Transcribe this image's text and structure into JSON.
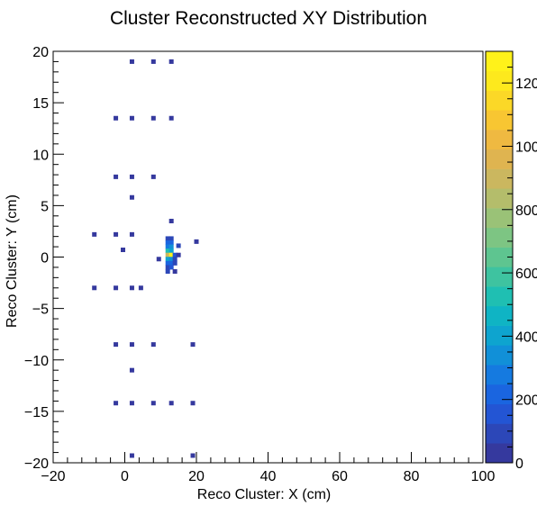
{
  "chart_data": {
    "type": "heatmap",
    "title": "Cluster Reconstructed XY Distribution",
    "xlabel": "Reco Cluster: X (cm)",
    "ylabel": "Reco Cluster: Y (cm)",
    "xlim": [
      -20,
      100
    ],
    "ylim": [
      -20,
      20
    ],
    "x_ticks": [
      "−20",
      "0",
      "20",
      "40",
      "60",
      "80",
      "100"
    ],
    "y_ticks": [
      "−20",
      "−15",
      "−10",
      "−5",
      "0",
      "5",
      "10",
      "15",
      "20"
    ],
    "z_range": [
      0,
      1300
    ],
    "z_ticks": [
      "0",
      "200",
      "400",
      "600",
      "800",
      "1000",
      "1200"
    ],
    "grid": false,
    "palette": [
      "#35399e",
      "#2c47b8",
      "#2355d4",
      "#1a65e0",
      "#157ae0",
      "#1190d8",
      "#0ea4cf",
      "#0fb4c4",
      "#1fbfb2",
      "#3ec3a0",
      "#5ec590",
      "#7dc583",
      "#9ac277",
      "#b4bd6b",
      "#cbb75f",
      "#dfb450",
      "#efb941",
      "#f8c632",
      "#fbd827",
      "#fde91d",
      "#fff21a"
    ],
    "cells": [
      {
        "x": 2,
        "y": 19,
        "v": 15
      },
      {
        "x": 8,
        "y": 19,
        "v": 15
      },
      {
        "x": 13,
        "y": 19,
        "v": 15
      },
      {
        "x": -2.5,
        "y": 13.5,
        "v": 15
      },
      {
        "x": 2,
        "y": 13.5,
        "v": 15
      },
      {
        "x": 8,
        "y": 13.5,
        "v": 15
      },
      {
        "x": 13,
        "y": 13.5,
        "v": 15
      },
      {
        "x": -2.5,
        "y": 7.8,
        "v": 15
      },
      {
        "x": 2,
        "y": 7.8,
        "v": 15
      },
      {
        "x": 8,
        "y": 7.8,
        "v": 15
      },
      {
        "x": 2,
        "y": 5.8,
        "v": 15
      },
      {
        "x": 13,
        "y": 3.5,
        "v": 15
      },
      {
        "x": -8.5,
        "y": 2.2,
        "v": 15
      },
      {
        "x": -2.5,
        "y": 2.2,
        "v": 15
      },
      {
        "x": 2,
        "y": 2.2,
        "v": 15
      },
      {
        "x": 20,
        "y": 1.5,
        "v": 15
      },
      {
        "x": -0.5,
        "y": 0.7,
        "v": 15
      },
      {
        "x": 9.5,
        "y": -0.2,
        "v": 15
      },
      {
        "x": 12,
        "y": 1.8,
        "v": 120
      },
      {
        "x": 13,
        "y": 1.8,
        "v": 120
      },
      {
        "x": 12,
        "y": 1.4,
        "v": 200
      },
      {
        "x": 13,
        "y": 1.4,
        "v": 200
      },
      {
        "x": 15,
        "y": 1.1,
        "v": 80
      },
      {
        "x": 12,
        "y": 1.0,
        "v": 300
      },
      {
        "x": 13,
        "y": 1.0,
        "v": 350
      },
      {
        "x": 12,
        "y": 0.6,
        "v": 500
      },
      {
        "x": 13,
        "y": 0.6,
        "v": 400
      },
      {
        "x": 12,
        "y": 0.2,
        "v": 900
      },
      {
        "x": 13,
        "y": 0.2,
        "v": 1300
      },
      {
        "x": 14,
        "y": 0.2,
        "v": 150
      },
      {
        "x": 15,
        "y": 0.2,
        "v": 60
      },
      {
        "x": 12,
        "y": -0.2,
        "v": 400
      },
      {
        "x": 13,
        "y": -0.2,
        "v": 350
      },
      {
        "x": 14,
        "y": -0.2,
        "v": 120
      },
      {
        "x": 12,
        "y": -0.6,
        "v": 200
      },
      {
        "x": 13,
        "y": -0.6,
        "v": 220
      },
      {
        "x": 14,
        "y": -0.6,
        "v": 80
      },
      {
        "x": 12,
        "y": -1.0,
        "v": 120
      },
      {
        "x": 13,
        "y": -1.0,
        "v": 150
      },
      {
        "x": 12,
        "y": -1.4,
        "v": 80
      },
      {
        "x": 14,
        "y": -1.4,
        "v": 60
      },
      {
        "x": -8.5,
        "y": -3,
        "v": 15
      },
      {
        "x": -2.5,
        "y": -3,
        "v": 15
      },
      {
        "x": 2,
        "y": -3,
        "v": 15
      },
      {
        "x": 4.5,
        "y": -3,
        "v": 15
      },
      {
        "x": -2.5,
        "y": -8.5,
        "v": 15
      },
      {
        "x": 2,
        "y": -8.5,
        "v": 15
      },
      {
        "x": 8,
        "y": -8.5,
        "v": 15
      },
      {
        "x": 19,
        "y": -8.5,
        "v": 15
      },
      {
        "x": 2,
        "y": -11,
        "v": 15
      },
      {
        "x": -2.5,
        "y": -14.2,
        "v": 15
      },
      {
        "x": 2,
        "y": -14.2,
        "v": 15
      },
      {
        "x": 8,
        "y": -14.2,
        "v": 15
      },
      {
        "x": 13,
        "y": -14.2,
        "v": 15
      },
      {
        "x": 19,
        "y": -14.2,
        "v": 15
      },
      {
        "x": 2,
        "y": -19.3,
        "v": 15
      },
      {
        "x": 19,
        "y": -19.3,
        "v": 15
      }
    ]
  }
}
